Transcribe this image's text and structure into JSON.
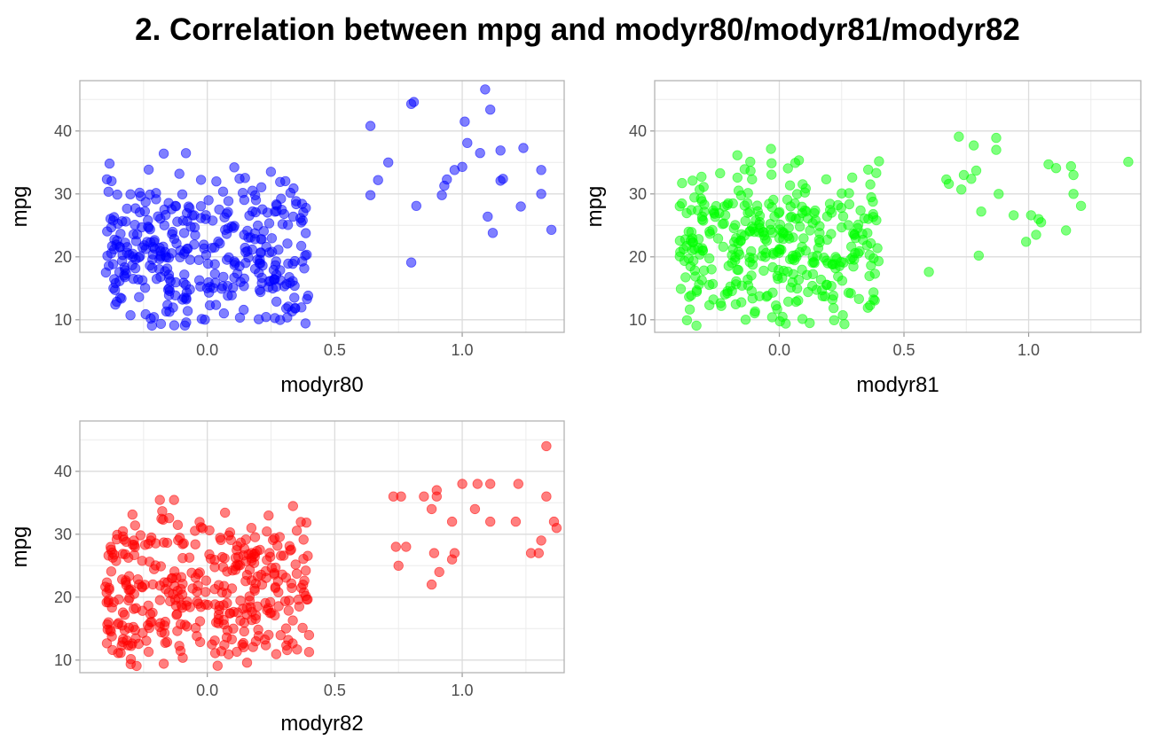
{
  "title": "2. Correlation between mpg and modyr80/modyr81/modyr82",
  "chart_data": [
    {
      "type": "scatter",
      "color": "#0000ff",
      "xlabel": "modyr80",
      "ylabel": "mpg",
      "xlim": [
        -0.5,
        1.4
      ],
      "ylim": [
        8,
        48
      ],
      "xticks": [
        "0.0",
        "0.5",
        "1.0"
      ],
      "xtick_values": [
        0.0,
        0.5,
        1.0
      ],
      "yticks": [
        "10",
        "20",
        "30",
        "40"
      ],
      "ytick_values": [
        10,
        20,
        30,
        40
      ],
      "seed": 80,
      "cluster": {
        "n": 360,
        "x_range": [
          -0.4,
          0.4
        ],
        "y_range": [
          9,
          44
        ],
        "y_peak": 21
      },
      "points": [
        [
          0.64,
          40.8
        ],
        [
          0.64,
          29.8
        ],
        [
          0.67,
          32.2
        ],
        [
          0.71,
          35.0
        ],
        [
          0.8,
          44.3
        ],
        [
          0.81,
          44.6
        ],
        [
          0.82,
          28.1
        ],
        [
          0.8,
          19.1
        ],
        [
          0.92,
          29.8
        ],
        [
          0.93,
          31.3
        ],
        [
          0.94,
          32.3
        ],
        [
          0.97,
          33.8
        ],
        [
          1.0,
          34.3
        ],
        [
          1.01,
          41.5
        ],
        [
          1.02,
          38.1
        ],
        [
          1.07,
          36.5
        ],
        [
          1.09,
          46.6
        ],
        [
          1.1,
          26.4
        ],
        [
          1.11,
          43.4
        ],
        [
          1.12,
          23.8
        ],
        [
          1.15,
          32.1
        ],
        [
          1.16,
          32.4
        ],
        [
          1.15,
          36.9
        ],
        [
          1.23,
          28.0
        ],
        [
          1.24,
          37.3
        ],
        [
          1.31,
          33.8
        ],
        [
          1.31,
          30.0
        ],
        [
          1.35,
          24.3
        ]
      ]
    },
    {
      "type": "scatter",
      "color": "#00ff00",
      "xlabel": "modyr81",
      "ylabel": "mpg",
      "xlim": [
        -0.5,
        1.45
      ],
      "ylim": [
        8,
        48
      ],
      "xticks": [
        "0.0",
        "0.5",
        "1.0"
      ],
      "xtick_values": [
        0.0,
        0.5,
        1.0
      ],
      "yticks": [
        "10",
        "20",
        "30",
        "40"
      ],
      "ytick_values": [
        10,
        20,
        30,
        40
      ],
      "seed": 81,
      "cluster": {
        "n": 360,
        "x_range": [
          -0.4,
          0.4
        ],
        "y_range": [
          9,
          46.6
        ],
        "y_peak": 22
      },
      "points": [
        [
          0.6,
          17.6
        ],
        [
          0.67,
          32.3
        ],
        [
          0.68,
          31.6
        ],
        [
          0.72,
          39.1
        ],
        [
          0.73,
          30.7
        ],
        [
          0.74,
          33.0
        ],
        [
          0.77,
          32.4
        ],
        [
          0.78,
          37.7
        ],
        [
          0.79,
          33.7
        ],
        [
          0.81,
          27.2
        ],
        [
          0.8,
          20.2
        ],
        [
          0.87,
          37.0
        ],
        [
          0.87,
          38.9
        ],
        [
          0.88,
          30.0
        ],
        [
          0.94,
          26.6
        ],
        [
          0.99,
          22.4
        ],
        [
          1.01,
          26.6
        ],
        [
          1.04,
          26.0
        ],
        [
          1.05,
          25.5
        ],
        [
          1.03,
          23.5
        ],
        [
          1.08,
          34.7
        ],
        [
          1.11,
          34.1
        ],
        [
          1.15,
          24.2
        ],
        [
          1.17,
          34.4
        ],
        [
          1.18,
          33.0
        ],
        [
          1.18,
          30.0
        ],
        [
          1.21,
          28.1
        ],
        [
          1.4,
          35.1
        ]
      ]
    },
    {
      "type": "scatter",
      "color": "#ff0000",
      "xlabel": "modyr82",
      "ylabel": "mpg",
      "xlim": [
        -0.5,
        1.4
      ],
      "ylim": [
        8,
        48
      ],
      "xticks": [
        "0.0",
        "0.5",
        "1.0"
      ],
      "xtick_values": [
        0.0,
        0.5,
        1.0
      ],
      "yticks": [
        "10",
        "20",
        "30",
        "40"
      ],
      "ytick_values": [
        10,
        20,
        30,
        40
      ],
      "seed": 82,
      "cluster": {
        "n": 370,
        "x_range": [
          -0.4,
          0.4
        ],
        "y_range": [
          9,
          46.6
        ],
        "y_peak": 21
      },
      "points": [
        [
          0.73,
          36.0
        ],
        [
          0.74,
          28.0
        ],
        [
          0.75,
          25.0
        ],
        [
          0.76,
          36.0
        ],
        [
          0.78,
          28.0
        ],
        [
          0.85,
          36.0
        ],
        [
          0.88,
          34.0
        ],
        [
          0.88,
          22.0
        ],
        [
          0.89,
          27.0
        ],
        [
          0.9,
          37.0
        ],
        [
          0.9,
          36.0
        ],
        [
          0.91,
          24.0
        ],
        [
          0.96,
          26.0
        ],
        [
          0.97,
          27.0
        ],
        [
          0.96,
          32.0
        ],
        [
          1.0,
          38.0
        ],
        [
          1.05,
          34.0
        ],
        [
          1.06,
          38.0
        ],
        [
          1.11,
          38.0
        ],
        [
          1.11,
          32.0
        ],
        [
          1.21,
          32.0
        ],
        [
          1.22,
          38.0
        ],
        [
          1.27,
          27.0
        ],
        [
          1.3,
          27.0
        ],
        [
          1.31,
          29.0
        ],
        [
          1.33,
          36.0
        ],
        [
          1.33,
          44.0
        ],
        [
          1.36,
          32.0
        ],
        [
          1.37,
          31.0
        ]
      ]
    }
  ]
}
